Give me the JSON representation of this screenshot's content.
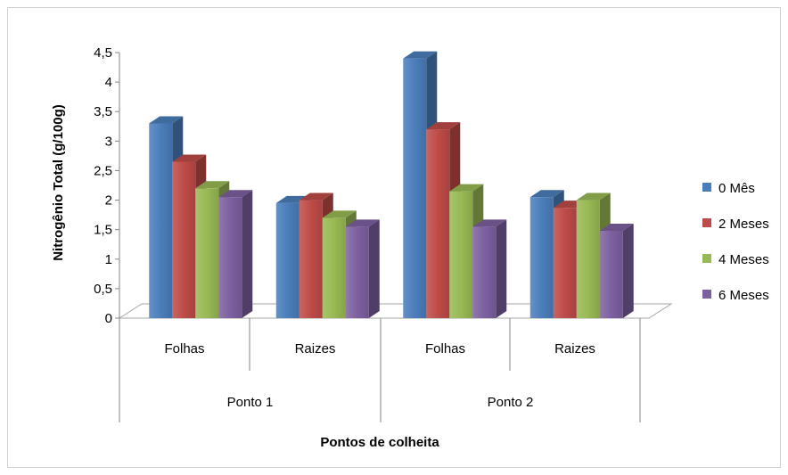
{
  "chart_data": {
    "type": "bar",
    "title": "",
    "xlabel": "Pontos de colheita",
    "ylabel": "Nitrogênio Total (g/100g)",
    "ylim": [
      0,
      4.5
    ],
    "yticks": [
      "0",
      "0,5",
      "1",
      "1,5",
      "2",
      "2,5",
      "3",
      "3,5",
      "4",
      "4,5"
    ],
    "groups": [
      {
        "label": "Ponto 1",
        "categories": [
          "Folhas",
          "Raizes"
        ]
      },
      {
        "label": "Ponto 2",
        "categories": [
          "Folhas",
          "Raizes"
        ]
      }
    ],
    "categories": [
      "Folhas",
      "Raizes",
      "Folhas",
      "Raizes"
    ],
    "series": [
      {
        "name": "0 Mês",
        "color": "#4a7ebb",
        "values": [
          3.3,
          1.95,
          4.4,
          2.05
        ]
      },
      {
        "name": "2 Meses",
        "color": "#be4b48",
        "values": [
          2.65,
          2.0,
          3.2,
          1.87
        ]
      },
      {
        "name": "4 Meses",
        "color": "#98b954",
        "values": [
          2.2,
          1.7,
          2.15,
          2.0
        ]
      },
      {
        "name": "6 Meses",
        "color": "#7d60a0",
        "values": [
          2.05,
          1.55,
          1.55,
          1.48
        ]
      }
    ],
    "legend": "right",
    "grid": false
  }
}
